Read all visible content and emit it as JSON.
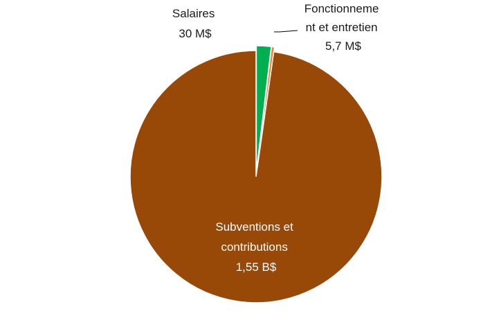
{
  "chart_data": {
    "type": "pie",
    "title": "",
    "slices": [
      {
        "label_lines": [
          "Subventions et",
          "contributions",
          "1,55 B$"
        ],
        "value": 1550,
        "color": "#984807"
      },
      {
        "label_lines": [
          "Salaires",
          "30 M$"
        ],
        "value": 30,
        "color": "#00B050"
      },
      {
        "label_lines": [
          "Fonctionneme",
          "nt et entretien",
          "5,7 M$"
        ],
        "value": 5.7,
        "color": "#ED7D31"
      }
    ],
    "legend": "none"
  }
}
